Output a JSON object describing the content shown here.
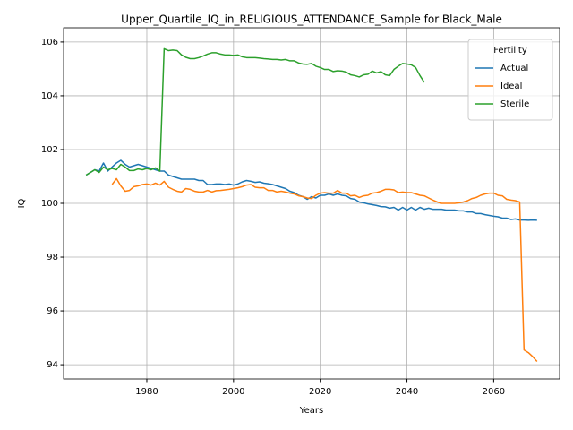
{
  "chart_data": {
    "type": "line",
    "title": "Upper_Quartile_IQ_in_RELIGIOUS_ATTENDANCE_Sample for Black_Male",
    "xlabel": "Years",
    "ylabel": "IQ",
    "x": [
      1966,
      1967,
      1968,
      1969,
      1970,
      1971,
      1972,
      1973,
      1974,
      1975,
      1976,
      1977,
      1978,
      1979,
      1980,
      1981,
      1982,
      1983,
      1984,
      1985,
      1986,
      1987,
      1988,
      1989,
      1990,
      1991,
      1992,
      1993,
      1994,
      1995,
      1996,
      1997,
      1998,
      1999,
      2000,
      2001,
      2002,
      2003,
      2004,
      2005,
      2006,
      2007,
      2008,
      2009,
      2010,
      2011,
      2012,
      2013,
      2014,
      2015,
      2016,
      2017,
      2018,
      2019,
      2020,
      2021,
      2022,
      2023,
      2024,
      2025,
      2026,
      2027,
      2028,
      2029,
      2030,
      2031,
      2032,
      2033,
      2034,
      2035,
      2036,
      2037,
      2038,
      2039,
      2040,
      2041,
      2042,
      2043,
      2044,
      2045,
      2046,
      2047,
      2048,
      2049,
      2050,
      2051,
      2052,
      2053,
      2054,
      2055,
      2056,
      2057,
      2058,
      2059,
      2060,
      2061,
      2062,
      2063,
      2064,
      2065,
      2066,
      2067,
      2068,
      2069,
      2070
    ],
    "series": [
      {
        "name": "Actual",
        "color": "#1f77b4",
        "values": [
          101.05,
          101.15,
          101.25,
          101.2,
          101.5,
          101.2,
          101.35,
          101.5,
          101.6,
          101.45,
          101.35,
          101.4,
          101.45,
          101.4,
          101.35,
          101.3,
          101.25,
          101.2,
          101.2,
          101.05,
          101.0,
          100.95,
          100.9,
          100.9,
          100.9,
          100.9,
          100.85,
          100.85,
          100.7,
          100.7,
          100.72,
          100.72,
          100.7,
          100.72,
          100.68,
          100.72,
          100.8,
          100.85,
          100.82,
          100.78,
          100.8,
          100.75,
          100.73,
          100.7,
          100.65,
          100.6,
          100.55,
          100.45,
          100.4,
          100.3,
          100.25,
          100.15,
          100.25,
          100.2,
          100.3,
          100.3,
          100.35,
          100.3,
          100.35,
          100.3,
          100.28,
          100.18,
          100.15,
          100.05,
          100.02,
          99.98,
          99.95,
          99.92,
          99.88,
          99.87,
          99.82,
          99.85,
          99.75,
          99.85,
          99.75,
          99.85,
          99.75,
          99.85,
          99.78,
          99.82,
          99.78,
          99.78,
          99.78,
          99.75,
          99.75,
          99.75,
          99.72,
          99.72,
          99.68,
          99.68,
          99.62,
          99.62,
          99.58,
          99.55,
          99.52,
          99.5,
          99.45,
          99.45,
          99.4,
          99.42,
          99.38,
          99.38,
          99.37,
          99.38,
          99.37
        ]
      },
      {
        "name": "Ideal",
        "color": "#ff7f0e",
        "values": [
          null,
          null,
          null,
          null,
          null,
          null,
          100.7,
          100.92,
          100.65,
          100.45,
          100.48,
          100.62,
          100.65,
          100.7,
          100.72,
          100.68,
          100.75,
          100.68,
          100.82,
          100.6,
          100.52,
          100.45,
          100.42,
          100.55,
          100.52,
          100.45,
          100.42,
          100.42,
          100.48,
          100.42,
          100.47,
          100.48,
          100.5,
          100.52,
          100.55,
          100.58,
          100.62,
          100.68,
          100.7,
          100.6,
          100.58,
          100.58,
          100.48,
          100.48,
          100.42,
          100.45,
          100.42,
          100.38,
          100.35,
          100.28,
          100.25,
          100.2,
          100.18,
          100.3,
          100.38,
          100.4,
          100.38,
          100.38,
          100.48,
          100.38,
          100.38,
          100.28,
          100.3,
          100.22,
          100.28,
          100.3,
          100.38,
          100.4,
          100.45,
          100.52,
          100.52,
          100.5,
          100.4,
          100.42,
          100.4,
          100.4,
          100.35,
          100.3,
          100.28,
          100.2,
          100.12,
          100.05,
          100.0,
          100.0,
          100.0,
          100.0,
          100.02,
          100.05,
          100.1,
          100.18,
          100.22,
          100.3,
          100.35,
          100.38,
          100.38,
          100.3,
          100.28,
          100.15,
          100.12,
          100.1,
          100.05,
          94.55,
          94.45,
          94.3,
          94.12
        ]
      },
      {
        "name": "Sterile",
        "color": "#2ca02c",
        "values": [
          101.05,
          101.15,
          101.25,
          101.15,
          101.35,
          101.25,
          101.3,
          101.25,
          101.45,
          101.35,
          101.22,
          101.22,
          101.28,
          101.25,
          101.3,
          101.25,
          101.32,
          101.2,
          105.75,
          105.68,
          105.7,
          105.68,
          105.52,
          105.43,
          105.38,
          105.38,
          105.42,
          105.48,
          105.55,
          105.6,
          105.6,
          105.55,
          105.52,
          105.52,
          105.5,
          105.52,
          105.45,
          105.42,
          105.42,
          105.42,
          105.4,
          105.38,
          105.37,
          105.35,
          105.35,
          105.33,
          105.35,
          105.3,
          105.3,
          105.22,
          105.18,
          105.17,
          105.2,
          105.1,
          105.05,
          104.98,
          104.98,
          104.9,
          104.93,
          104.92,
          104.88,
          104.78,
          104.75,
          104.7,
          104.78,
          104.8,
          104.92,
          104.85,
          104.9,
          104.78,
          104.75,
          104.98,
          105.1,
          105.2,
          105.18,
          105.15,
          105.05,
          104.75,
          104.5,
          null,
          null,
          null,
          null,
          null,
          null,
          null,
          null,
          null,
          null,
          null,
          null,
          null,
          null,
          null,
          null,
          null,
          null,
          null,
          null,
          null,
          null,
          null,
          null,
          null,
          null
        ]
      }
    ],
    "xlim": [
      1960.8,
      2075.2
    ],
    "ylim": [
      93.47,
      106.53
    ],
    "xticks": [
      1980,
      2000,
      2020,
      2040,
      2060
    ],
    "yticks": [
      94,
      96,
      98,
      100,
      102,
      104,
      106
    ],
    "grid": true,
    "legend_title": "Fertility",
    "legend": "upper right"
  }
}
